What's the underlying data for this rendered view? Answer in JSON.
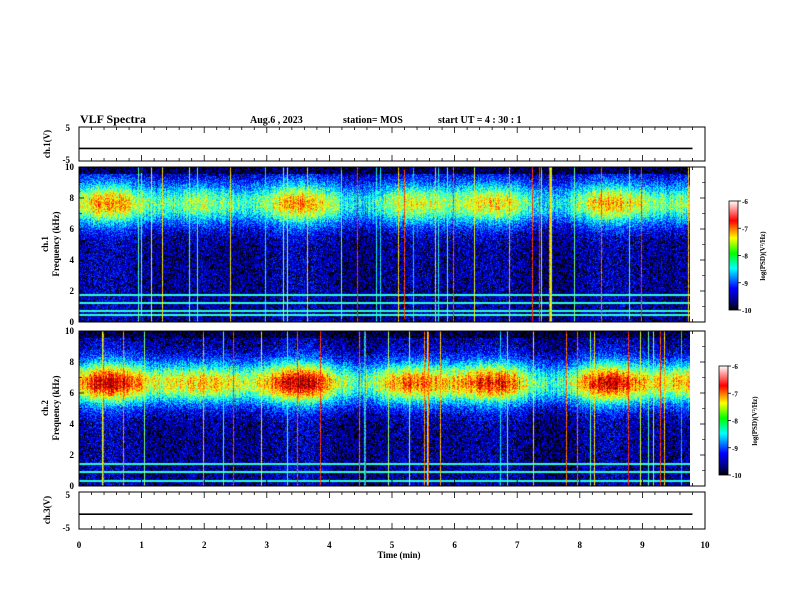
{
  "header": {
    "title": "VLF Spectra",
    "date": "Aug.6  , 2023",
    "station": "station= MOS",
    "start": "start  UT  =   4 : 30 : 1"
  },
  "chart_data": [
    {
      "type": "line",
      "name": "ch1-waveform",
      "ylabel": "ch.1(V)",
      "ylim": [
        -5,
        5
      ],
      "yticks": [
        "5",
        "-5"
      ],
      "xlim": [
        0,
        10
      ],
      "x": [
        0,
        9.8
      ],
      "y": [
        -1.3,
        -1.3
      ]
    },
    {
      "type": "heatmap",
      "name": "ch1-spectrogram",
      "ylabel_line1": "ch.1",
      "ylabel_line2": "Frequency (kHz)",
      "ylim": [
        0,
        10
      ],
      "yticks": [
        "0",
        "2",
        "4",
        "6",
        "8",
        "10"
      ],
      "xlim": [
        0,
        9.8
      ],
      "dominant_band_khz": [
        6.5,
        8.8
      ],
      "narrowband_lines_khz": [
        0.4,
        0.7,
        1.2,
        1.7
      ],
      "colorbar": {
        "min": -10,
        "max": -6,
        "ticks": [
          "-6",
          "-7",
          "-8",
          "-9",
          "-10"
        ],
        "label": "log(PSD)(V²/Hz)"
      }
    },
    {
      "type": "heatmap",
      "name": "ch2-spectrogram",
      "ylabel_line1": "ch.2",
      "ylabel_line2": "Frequency (kHz)",
      "ylim": [
        0,
        10
      ],
      "yticks": [
        "0",
        "2",
        "4",
        "6",
        "8",
        "10"
      ],
      "xlim": [
        0,
        9.8
      ],
      "dominant_band_khz": [
        5.5,
        7.8
      ],
      "narrowband_lines_khz": [
        0.3,
        0.9,
        1.4
      ],
      "colorbar": {
        "min": -10,
        "max": -6,
        "ticks": [
          "-6",
          "-7",
          "-8",
          "-9",
          "-10"
        ],
        "label": "log(PSD)(V²/Hz)"
      }
    },
    {
      "type": "line",
      "name": "ch3-waveform",
      "ylabel": "ch.3(V)",
      "ylim": [
        -5,
        5
      ],
      "yticks": [
        "5",
        "-5"
      ],
      "xlim": [
        0,
        10
      ],
      "x": [
        0,
        9.8
      ],
      "y": [
        -1.0,
        -1.0
      ],
      "xlabel": "Time  (min)",
      "xticks": [
        "0",
        "1",
        "2",
        "3",
        "4",
        "5",
        "6",
        "7",
        "8",
        "9",
        "10"
      ]
    }
  ],
  "colors": {
    "jet": [
      "#00007f",
      "#0000ff",
      "#00ffff",
      "#00ff00",
      "#ffff00",
      "#ff0000",
      "#7f0000"
    ],
    "trace": "#000000",
    "background": "#ffffff"
  }
}
